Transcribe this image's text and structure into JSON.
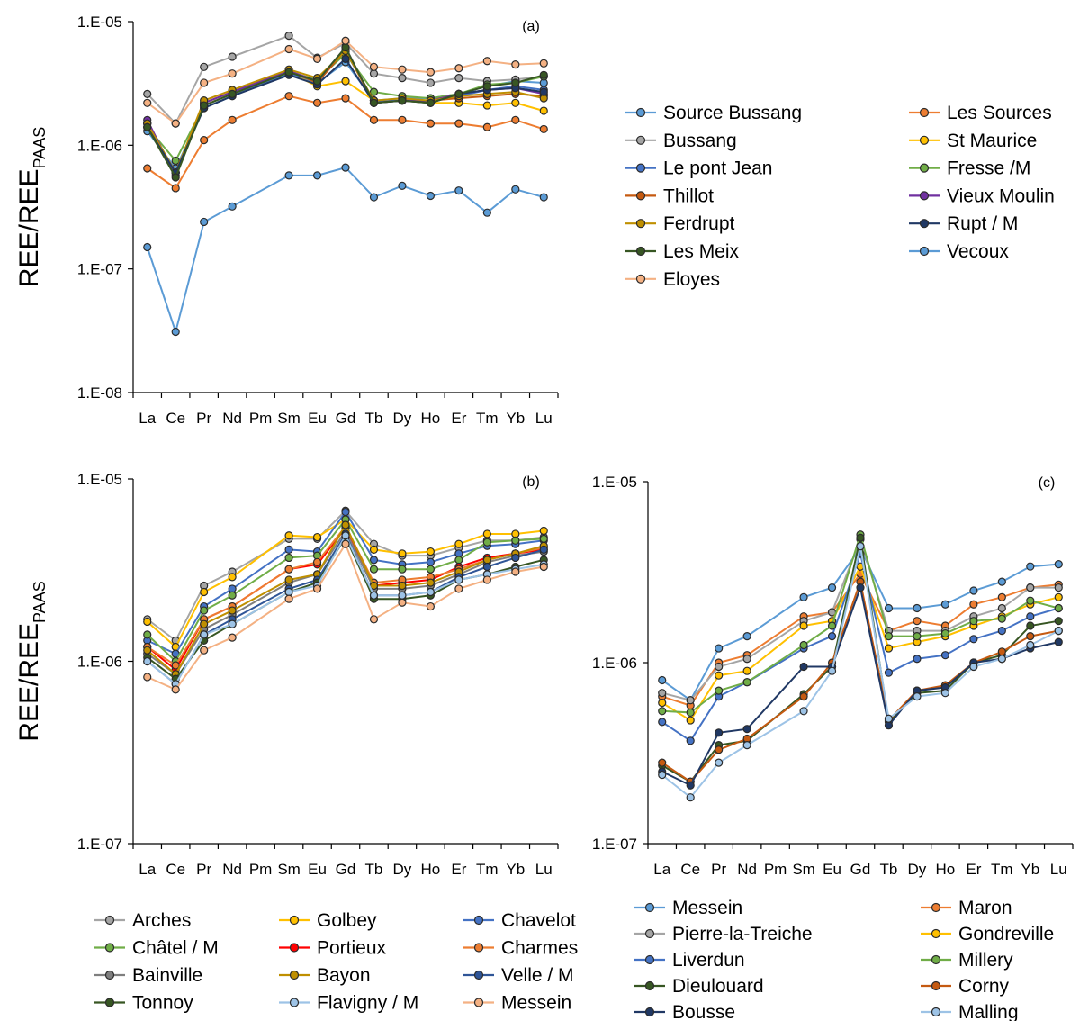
{
  "chart_data": [
    {
      "panel": "(a)",
      "type": "line",
      "ylabel": "REE/REE",
      "ylabel_sub": "PAAS",
      "yscale": "log",
      "ylim": [
        1e-08,
        1e-05
      ],
      "yticks": [
        "1.E-08",
        "1.E-07",
        "1.E-06",
        "1.E-05"
      ],
      "categories": [
        "La",
        "Ce",
        "Pr",
        "Nd",
        "Pm",
        "Sm",
        "Eu",
        "Gd",
        "Tb",
        "Dy",
        "Ho",
        "Er",
        "Tm",
        "Yb",
        "Lu"
      ],
      "legend_columns": 2,
      "series": [
        {
          "name": "Source Bussang",
          "color": "#5b9bd5",
          "values": [
            1.3e-06,
            6.5e-07,
            2e-06,
            2.5e-06,
            null,
            3.8e-06,
            3.2e-06,
            4.7e-06,
            2.3e-06,
            2.4e-06,
            2.4e-06,
            2.6e-06,
            3e-06,
            3.3e-06,
            3.2e-06
          ]
        },
        {
          "name": "Les Sources",
          "color": "#ed7d31",
          "values": [
            6.5e-07,
            4.5e-07,
            1.1e-06,
            1.6e-06,
            null,
            2.5e-06,
            2.2e-06,
            2.4e-06,
            1.6e-06,
            1.6e-06,
            1.5e-06,
            1.5e-06,
            1.4e-06,
            1.6e-06,
            1.35e-06
          ]
        },
        {
          "name": "Bussang",
          "color": "#a5a5a5",
          "values": [
            2.6e-06,
            1.5e-06,
            4.3e-06,
            5.2e-06,
            null,
            7.7e-06,
            5.1e-06,
            6.7e-06,
            3.8e-06,
            3.5e-06,
            3.2e-06,
            3.5e-06,
            3.3e-06,
            3.4e-06,
            3.6e-06
          ]
        },
        {
          "name": "St Maurice",
          "color": "#ffc000",
          "values": [
            1.5e-06,
            6e-07,
            2.1e-06,
            2.6e-06,
            null,
            3.9e-06,
            3e-06,
            3.3e-06,
            2.3e-06,
            2.3e-06,
            2.2e-06,
            2.2e-06,
            2.1e-06,
            2.2e-06,
            1.9e-06
          ]
        },
        {
          "name": "Le pont Jean",
          "color": "#4472c4",
          "values": [
            1.5e-06,
            6e-07,
            2.1e-06,
            2.6e-06,
            null,
            3.8e-06,
            3.3e-06,
            5.7e-06,
            2.3e-06,
            2.3e-06,
            2.3e-06,
            2.5e-06,
            2.8e-06,
            3e-06,
            2.8e-06
          ]
        },
        {
          "name": "Fresse /M",
          "color": "#70ad47",
          "values": [
            1.4e-06,
            7.5e-07,
            2.1e-06,
            2.6e-06,
            null,
            3.9e-06,
            3.4e-06,
            5.5e-06,
            2.7e-06,
            2.5e-06,
            2.4e-06,
            2.6e-06,
            3.1e-06,
            3.2e-06,
            3.6e-06
          ]
        },
        {
          "name": "Thillot",
          "color": "#c55a11",
          "values": [
            1.5e-06,
            6e-07,
            2.2e-06,
            2.7e-06,
            null,
            4e-06,
            3.2e-06,
            5.9e-06,
            2.2e-06,
            2.3e-06,
            2.3e-06,
            2.4e-06,
            2.5e-06,
            2.6e-06,
            2.5e-06
          ]
        },
        {
          "name": "Vieux Moulin",
          "color": "#7030a0",
          "values": [
            1.6e-06,
            5.7e-07,
            2.2e-06,
            2.7e-06,
            null,
            4e-06,
            3.3e-06,
            6.2e-06,
            2.2e-06,
            2.3e-06,
            2.3e-06,
            2.6e-06,
            2.8e-06,
            2.9e-06,
            2.6e-06
          ]
        },
        {
          "name": "Ferdrupt",
          "color": "#bf8f00",
          "values": [
            1.5e-06,
            6e-07,
            2.3e-06,
            2.8e-06,
            null,
            4.1e-06,
            3.5e-06,
            5.8e-06,
            2.3e-06,
            2.4e-06,
            2.3e-06,
            2.5e-06,
            2.6e-06,
            2.7e-06,
            2.4e-06
          ]
        },
        {
          "name": "Rupt / M",
          "color": "#203864",
          "values": [
            1.4e-06,
            6e-07,
            2e-06,
            2.5e-06,
            null,
            3.7e-06,
            3.1e-06,
            5e-06,
            2.2e-06,
            2.3e-06,
            2.2e-06,
            2.6e-06,
            2.8e-06,
            2.9e-06,
            2.7e-06
          ]
        },
        {
          "name": "Les Meix",
          "color": "#375623",
          "values": [
            1.4e-06,
            5.5e-07,
            2.1e-06,
            2.6e-06,
            null,
            3.9e-06,
            3.3e-06,
            6.2e-06,
            2.2e-06,
            2.3e-06,
            2.2e-06,
            2.6e-06,
            3e-06,
            3.2e-06,
            3.7e-06
          ]
        },
        {
          "name": "Vecoux",
          "color": "#5b9bd5",
          "values": [
            1.5e-07,
            3.1e-08,
            2.4e-07,
            3.2e-07,
            null,
            5.7e-07,
            5.7e-07,
            6.6e-07,
            3.8e-07,
            4.7e-07,
            3.9e-07,
            4.3e-07,
            2.85e-07,
            4.4e-07,
            3.8e-07
          ]
        },
        {
          "name": "Eloyes",
          "color": "#f4b183",
          "values": [
            2.2e-06,
            1.5e-06,
            3.2e-06,
            3.8e-06,
            null,
            6e-06,
            5e-06,
            7e-06,
            4.3e-06,
            4.1e-06,
            3.9e-06,
            4.2e-06,
            4.8e-06,
            4.5e-06,
            4.6e-06
          ]
        }
      ]
    },
    {
      "panel": "(b)",
      "type": "line",
      "ylabel": "REE/REE",
      "ylabel_sub": "PAAS",
      "yscale": "log",
      "ylim": [
        1e-07,
        1e-05
      ],
      "yticks": [
        "1.E-07",
        "1.E-06",
        "1.E-05"
      ],
      "categories": [
        "La",
        "Ce",
        "Pr",
        "Nd",
        "Pm",
        "Sm",
        "Eu",
        "Gd",
        "Tb",
        "Dy",
        "Ho",
        "Er",
        "Tm",
        "Yb",
        "Lu"
      ],
      "legend_columns": 3,
      "series": [
        {
          "name": "Arches",
          "color": "#a5a5a5",
          "values": [
            1.7e-06,
            1.3e-06,
            2.6e-06,
            3.1e-06,
            null,
            4.7e-06,
            4.7e-06,
            6.7e-06,
            4.4e-06,
            3.8e-06,
            3.8e-06,
            4.2e-06,
            4.6e-06,
            4.6e-06,
            4.8e-06
          ]
        },
        {
          "name": "Golbey",
          "color": "#ffc000",
          "values": [
            1.65e-06,
            1.2e-06,
            2.4e-06,
            2.9e-06,
            null,
            4.9e-06,
            4.8e-06,
            6e-06,
            4.1e-06,
            3.9e-06,
            4e-06,
            4.4e-06,
            5e-06,
            5e-06,
            5.2e-06
          ]
        },
        {
          "name": "Chavelot",
          "color": "#4472c4",
          "values": [
            1.3e-06,
            1.1e-06,
            2e-06,
            2.5e-06,
            null,
            4.1e-06,
            4e-06,
            6.6e-06,
            3.6e-06,
            3.4e-06,
            3.5e-06,
            3.9e-06,
            4.3e-06,
            4.4e-06,
            4.6e-06
          ]
        },
        {
          "name": "Châtel / M",
          "color": "#70ad47",
          "values": [
            1.4e-06,
            1e-06,
            1.9e-06,
            2.3e-06,
            null,
            3.7e-06,
            3.8e-06,
            6e-06,
            3.2e-06,
            3.2e-06,
            3.2e-06,
            3.6e-06,
            4.5e-06,
            4.6e-06,
            4.7e-06
          ]
        },
        {
          "name": "Portieux",
          "color": "#ff0000",
          "values": [
            1.2e-06,
            9e-07,
            1.7e-06,
            2e-06,
            null,
            3.2e-06,
            3.4e-06,
            5.4e-06,
            2.6e-06,
            2.7e-06,
            2.8e-06,
            3.3e-06,
            3.7e-06,
            3.9e-06,
            4.1e-06
          ]
        },
        {
          "name": "Charmes",
          "color": "#ed7d31",
          "values": [
            1.2e-06,
            9.5e-07,
            1.7e-06,
            2e-06,
            null,
            3.2e-06,
            3.5e-06,
            5.5e-06,
            2.7e-06,
            2.8e-06,
            2.9e-06,
            3.2e-06,
            3.6e-06,
            3.9e-06,
            4.2e-06
          ]
        },
        {
          "name": "Bainville",
          "color": "#7f7f7f",
          "values": [
            1.1e-06,
            8.5e-07,
            1.5e-06,
            1.8e-06,
            null,
            2.7e-06,
            3e-06,
            5.2e-06,
            2.5e-06,
            2.5e-06,
            2.6e-06,
            3e-06,
            3.5e-06,
            3.8e-06,
            4e-06
          ]
        },
        {
          "name": "Bayon",
          "color": "#bf8f00",
          "values": [
            1.15e-06,
            8.5e-07,
            1.6e-06,
            1.9e-06,
            null,
            2.8e-06,
            3e-06,
            5.6e-06,
            2.6e-06,
            2.6e-06,
            2.7e-06,
            3.1e-06,
            3.6e-06,
            3.9e-06,
            4.3e-06
          ]
        },
        {
          "name": "Velle / M",
          "color": "#2f5597",
          "values": [
            1e-06,
            7.5e-07,
            1.4e-06,
            1.7e-06,
            null,
            2.5e-06,
            2.8e-06,
            5e-06,
            2.3e-06,
            2.3e-06,
            2.4e-06,
            2.9e-06,
            3.3e-06,
            3.7e-06,
            4.1e-06
          ]
        },
        {
          "name": "Tonnoy",
          "color": "#375623",
          "values": [
            1.05e-06,
            8e-07,
            1.3e-06,
            1.6e-06,
            null,
            2.4e-06,
            2.7e-06,
            4.8e-06,
            2.2e-06,
            2.2e-06,
            2.3e-06,
            2.8e-06,
            3e-06,
            3.3e-06,
            3.6e-06
          ]
        },
        {
          "name": "Flavigny / M",
          "color": "#9dc3e6",
          "values": [
            1e-06,
            7.5e-07,
            1.4e-06,
            1.6e-06,
            null,
            2.4e-06,
            2.6e-06,
            4.9e-06,
            2.3e-06,
            2.3e-06,
            2.4e-06,
            2.8e-06,
            3e-06,
            3.2e-06,
            3.4e-06
          ]
        },
        {
          "name": "Messein",
          "color": "#f4b183",
          "values": [
            8.2e-07,
            7e-07,
            1.15e-06,
            1.35e-06,
            null,
            2.2e-06,
            2.5e-06,
            4.4e-06,
            1.7e-06,
            2.1e-06,
            2e-06,
            2.5e-06,
            2.8e-06,
            3.1e-06,
            3.3e-06
          ]
        }
      ]
    },
    {
      "panel": "(c)",
      "type": "line",
      "yscale": "log",
      "ylim": [
        1e-07,
        1e-05
      ],
      "yticks": [
        "1.E-07",
        "1.E-06",
        "1.E-05"
      ],
      "categories": [
        "La",
        "Ce",
        "Pr",
        "Nd",
        "Pm",
        "Sm",
        "Eu",
        "Gd",
        "Tb",
        "Dy",
        "Ho",
        "Er",
        "Tm",
        "Yb",
        "Lu"
      ],
      "legend_columns": 2,
      "series": [
        {
          "name": "Messein",
          "color": "#5b9bd5",
          "values": [
            8e-07,
            6.2e-07,
            1.2e-06,
            1.4e-06,
            null,
            2.3e-06,
            2.6e-06,
            4.3e-06,
            2e-06,
            2e-06,
            2.1e-06,
            2.5e-06,
            2.8e-06,
            3.4e-06,
            3.5e-06
          ]
        },
        {
          "name": "Maron",
          "color": "#ed7d31",
          "values": [
            6.5e-07,
            5.8e-07,
            1e-06,
            1.1e-06,
            null,
            1.8e-06,
            1.9e-06,
            3.1e-06,
            1.5e-06,
            1.7e-06,
            1.6e-06,
            2.1e-06,
            2.3e-06,
            2.6e-06,
            2.7e-06
          ]
        },
        {
          "name": "Pierre-la-Treiche",
          "color": "#a5a5a5",
          "values": [
            6.8e-07,
            6.2e-07,
            9.5e-07,
            1.05e-06,
            null,
            1.7e-06,
            1.9e-06,
            4.8e-06,
            1.5e-06,
            1.5e-06,
            1.5e-06,
            1.8e-06,
            2e-06,
            2.6e-06,
            2.6e-06
          ]
        },
        {
          "name": "Gondreville",
          "color": "#ffc000",
          "values": [
            6e-07,
            4.8e-07,
            8.5e-07,
            9e-07,
            null,
            1.6e-06,
            1.7e-06,
            3.4e-06,
            1.2e-06,
            1.3e-06,
            1.4e-06,
            1.6e-06,
            1.8e-06,
            2.1e-06,
            2.3e-06
          ]
        },
        {
          "name": "Liverdun",
          "color": "#4472c4",
          "values": [
            4.7e-07,
            3.7e-07,
            6.5e-07,
            7.8e-07,
            null,
            1.2e-06,
            1.4e-06,
            4e-06,
            8.8e-07,
            1.05e-06,
            1.1e-06,
            1.35e-06,
            1.5e-06,
            1.8e-06,
            2e-06
          ]
        },
        {
          "name": "Millery",
          "color": "#70ad47",
          "values": [
            5.4e-07,
            5.3e-07,
            7e-07,
            7.8e-07,
            null,
            1.25e-06,
            1.6e-06,
            5.1e-06,
            1.4e-06,
            1.4e-06,
            1.45e-06,
            1.7e-06,
            1.75e-06,
            2.2e-06,
            2e-06
          ]
        },
        {
          "name": "Dieulouard",
          "color": "#375623",
          "values": [
            2.7e-07,
            2.2e-07,
            3.5e-07,
            3.7e-07,
            null,
            6.7e-07,
            9.5e-07,
            4.9e-06,
            4.7e-07,
            6.8e-07,
            7e-07,
            1e-06,
            1.1e-06,
            1.6e-06,
            1.7e-06
          ]
        },
        {
          "name": "Corny",
          "color": "#c55a11",
          "values": [
            2.8e-07,
            2.2e-07,
            3.3e-07,
            3.8e-07,
            null,
            6.5e-07,
            1e-06,
            2.8e-06,
            4.8e-07,
            7e-07,
            7.5e-07,
            1e-06,
            1.15e-06,
            1.4e-06,
            1.5e-06
          ]
        },
        {
          "name": "Bousse",
          "color": "#203864",
          "values": [
            2.5e-07,
            2.1e-07,
            4.1e-07,
            4.3e-07,
            null,
            9.5e-07,
            9.5e-07,
            2.6e-06,
            4.5e-07,
            7e-07,
            7.3e-07,
            1e-06,
            1.05e-06,
            1.2e-06,
            1.3e-06
          ]
        },
        {
          "name": "Malling",
          "color": "#9dc3e6",
          "values": [
            2.4e-07,
            1.8e-07,
            2.8e-07,
            3.5e-07,
            null,
            5.4e-07,
            9e-07,
            4.4e-06,
            4.9e-07,
            6.5e-07,
            6.8e-07,
            9.5e-07,
            1.05e-06,
            1.25e-06,
            1.5e-06
          ]
        }
      ]
    }
  ]
}
